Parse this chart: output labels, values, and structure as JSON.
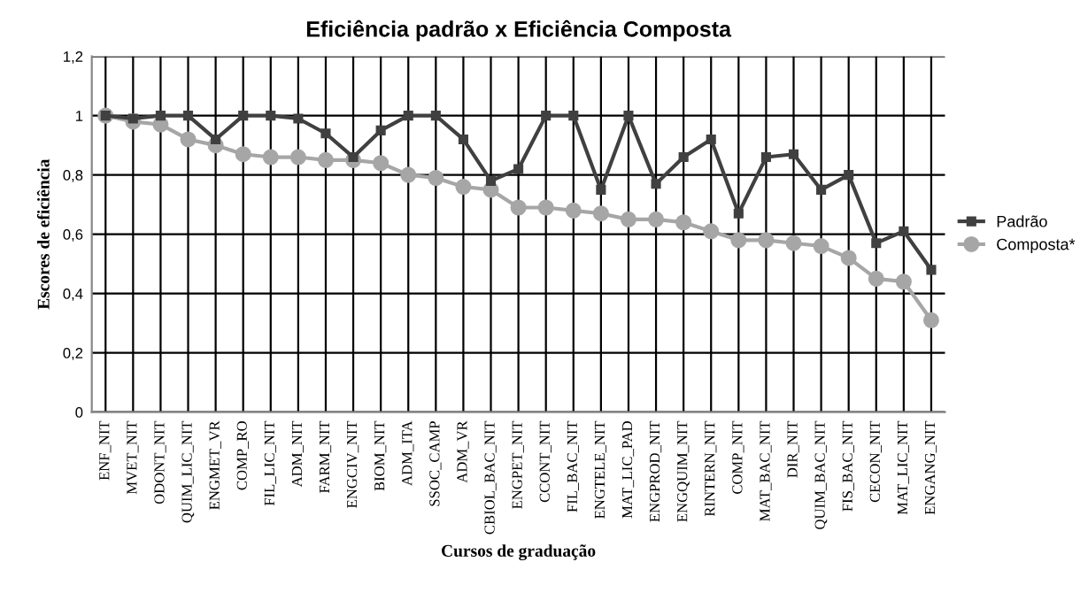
{
  "chart_data": {
    "type": "line",
    "title": "Eficiência padrão x Eficiência Composta",
    "xlabel": "Cursos de graduação",
    "ylabel": "Escores de eficiência",
    "categories": [
      "ENF_NIT",
      "MVET_NIT",
      "ODONT_NIT",
      "QUIM_LIC_NIT",
      "ENGMET_VR",
      "COMP_RO",
      "FIL_LIC_NIT",
      "ADM_NIT",
      "FARM_NIT",
      "ENGCIV_NIT",
      "BIOM_NIT",
      "ADM_ITA",
      "SSOC_CAMP",
      "ADM_VR",
      "CBIOL_BAC_NIT",
      "ENGPET_NIT",
      "CCONT_NIT",
      "FIL_BAC_NIT",
      "ENGTELE_NIT",
      "MAT_LIC_PAD",
      "ENGPROD_NIT",
      "ENGQUIM_NIT",
      "RINTERN_NIT",
      "COMP_NIT",
      "MAT_BAC_NIT",
      "DIR_NIT",
      "QUIM_BAC_NIT",
      "FIS_BAC_NIT",
      "CECON_NIT",
      "MAT_LIC_NIT",
      "ENGANG_NIT"
    ],
    "series": [
      {
        "name": "Padrão",
        "color": "#404040",
        "marker": "square",
        "values": [
          1,
          0.99,
          1,
          1,
          0.92,
          1,
          1,
          0.99,
          0.94,
          0.86,
          0.95,
          1,
          1,
          0.92,
          0.78,
          0.82,
          1,
          1,
          0.75,
          1,
          0.77,
          0.86,
          0.92,
          0.67,
          0.86,
          0.87,
          0.75,
          0.8,
          0.57,
          0.61,
          0.48
        ]
      },
      {
        "name": "Composta*",
        "color": "#a6a6a6",
        "marker": "circle",
        "values": [
          1,
          0.98,
          0.97,
          0.92,
          0.9,
          0.87,
          0.86,
          0.86,
          0.85,
          0.85,
          0.84,
          0.8,
          0.79,
          0.76,
          0.75,
          0.69,
          0.69,
          0.68,
          0.67,
          0.65,
          0.65,
          0.64,
          0.61,
          0.58,
          0.58,
          0.57,
          0.56,
          0.52,
          0.45,
          0.44,
          0.31
        ]
      }
    ],
    "ylim": [
      0,
      1.2
    ],
    "yticks": [
      {
        "value": 0,
        "label": "0"
      },
      {
        "value": 0.2,
        "label": "0,2"
      },
      {
        "value": 0.4,
        "label": "0,4"
      },
      {
        "value": 0.6,
        "label": "0,6"
      },
      {
        "value": 0.8,
        "label": "0,8"
      },
      {
        "value": 1,
        "label": "1"
      },
      {
        "value": 1.2,
        "label": "1,2"
      }
    ],
    "grid": true,
    "legend": "right",
    "line_style": "solid"
  }
}
